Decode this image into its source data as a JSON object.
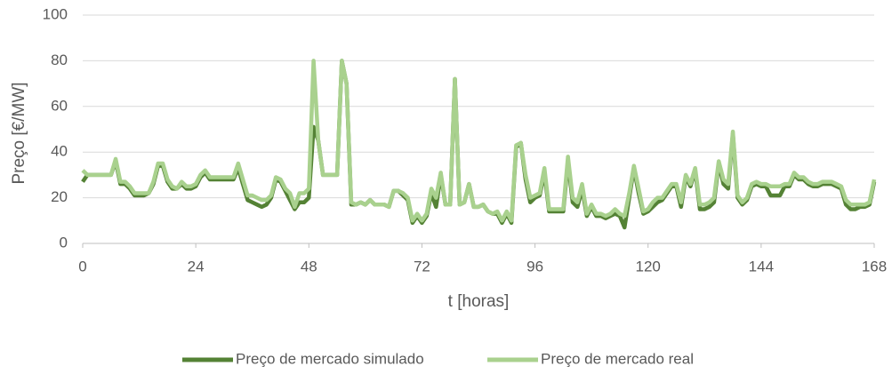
{
  "chart_data": {
    "type": "line",
    "ylabel": "Preço [€/MW]",
    "xlabel": "t [horas]",
    "xlim": [
      0,
      168
    ],
    "xticks": [
      0,
      24,
      48,
      72,
      96,
      120,
      144,
      168
    ],
    "ylim": [
      0,
      100
    ],
    "yticks": [
      0,
      20,
      40,
      60,
      80,
      100
    ],
    "grid": true,
    "legend": "bottom",
    "x": [
      0,
      1,
      2,
      3,
      4,
      5,
      6,
      7,
      8,
      9,
      10,
      11,
      12,
      13,
      14,
      15,
      16,
      17,
      18,
      19,
      20,
      21,
      22,
      23,
      24,
      25,
      26,
      27,
      28,
      29,
      30,
      31,
      32,
      33,
      34,
      35,
      36,
      37,
      38,
      39,
      40,
      41,
      42,
      43,
      44,
      45,
      46,
      47,
      48,
      49,
      50,
      51,
      52,
      53,
      54,
      55,
      56,
      57,
      58,
      59,
      60,
      61,
      62,
      63,
      64,
      65,
      66,
      67,
      68,
      69,
      70,
      71,
      72,
      73,
      74,
      75,
      76,
      77,
      78,
      79,
      80,
      81,
      82,
      83,
      84,
      85,
      86,
      87,
      88,
      89,
      90,
      91,
      92,
      93,
      94,
      95,
      96,
      97,
      98,
      99,
      100,
      101,
      102,
      103,
      104,
      105,
      106,
      107,
      108,
      109,
      110,
      111,
      112,
      113,
      114,
      115,
      116,
      117,
      118,
      119,
      120,
      121,
      122,
      123,
      124,
      125,
      126,
      127,
      128,
      129,
      130,
      131,
      132,
      133,
      134,
      135,
      136,
      137,
      138,
      139,
      140,
      141,
      142,
      143,
      144,
      145,
      146,
      147,
      148,
      149,
      150,
      151,
      152,
      153,
      154,
      155,
      156,
      157,
      158,
      159,
      160,
      161,
      162,
      163,
      164,
      165,
      166,
      167,
      168
    ],
    "series": [
      {
        "name": "Preço de mercado simulado",
        "color": "#548235",
        "values": [
          27,
          30,
          30,
          30,
          30,
          30,
          30,
          36,
          26,
          26,
          24,
          21,
          21,
          21,
          22,
          26,
          34,
          34,
          27,
          24,
          24,
          26,
          24,
          24,
          25,
          29,
          31,
          28,
          28,
          28,
          28,
          28,
          28,
          33,
          26,
          19,
          18,
          17,
          16,
          17,
          20,
          28,
          27,
          23,
          19,
          15,
          18,
          18,
          20,
          51,
          45,
          30,
          30,
          30,
          30,
          80,
          70,
          17,
          17,
          18,
          17,
          19,
          17,
          17,
          17,
          16,
          23,
          23,
          21,
          19,
          9,
          12,
          9,
          12,
          22,
          16,
          30,
          17,
          17,
          72,
          17,
          18,
          26,
          16,
          16,
          17,
          14,
          13,
          13,
          9,
          13,
          9,
          42,
          44,
          28,
          18,
          20,
          21,
          31,
          14,
          14,
          14,
          14,
          36,
          18,
          16,
          24,
          12,
          16,
          12,
          12,
          11,
          12,
          13,
          12,
          7,
          20,
          33,
          22,
          13,
          14,
          16,
          18,
          19,
          22,
          25,
          25,
          16,
          29,
          25,
          32,
          15,
          15,
          16,
          18,
          35,
          26,
          24,
          48,
          20,
          17,
          19,
          25,
          26,
          25,
          25,
          21,
          21,
          21,
          25,
          25,
          30,
          28,
          28,
          26,
          25,
          25,
          26,
          26,
          26,
          25,
          24,
          17,
          15,
          15,
          16,
          16,
          17,
          27
        ]
      },
      {
        "name": "Preço de mercado real",
        "color": "#a9d18e",
        "values": [
          32,
          30,
          30,
          30,
          30,
          30,
          30,
          37,
          27,
          27,
          25,
          22,
          22,
          22,
          22,
          27,
          35,
          35,
          28,
          25,
          24,
          27,
          25,
          25,
          26,
          30,
          32,
          29,
          29,
          29,
          29,
          29,
          29,
          35,
          28,
          21,
          21,
          20,
          19,
          19,
          21,
          29,
          28,
          24,
          22,
          16,
          22,
          22,
          24,
          80,
          45,
          30,
          30,
          30,
          30,
          80,
          70,
          18,
          17,
          18,
          17,
          19,
          17,
          17,
          17,
          16,
          23,
          23,
          22,
          20,
          10,
          13,
          10,
          13,
          24,
          20,
          31,
          17,
          17,
          72,
          17,
          18,
          26,
          16,
          16,
          17,
          14,
          13,
          14,
          10,
          14,
          10,
          43,
          44,
          30,
          20,
          21,
          22,
          33,
          15,
          15,
          15,
          15,
          38,
          20,
          18,
          26,
          13,
          17,
          13,
          13,
          12,
          13,
          15,
          13,
          12,
          22,
          34,
          24,
          14,
          15,
          18,
          20,
          20,
          23,
          26,
          26,
          18,
          30,
          26,
          33,
          17,
          17,
          18,
          20,
          36,
          28,
          26,
          49,
          21,
          18,
          20,
          26,
          27,
          26,
          26,
          25,
          25,
          25,
          26,
          26,
          31,
          29,
          29,
          27,
          26,
          26,
          27,
          27,
          27,
          26,
          25,
          19,
          17,
          17,
          17,
          17,
          18,
          28
        ]
      }
    ]
  }
}
